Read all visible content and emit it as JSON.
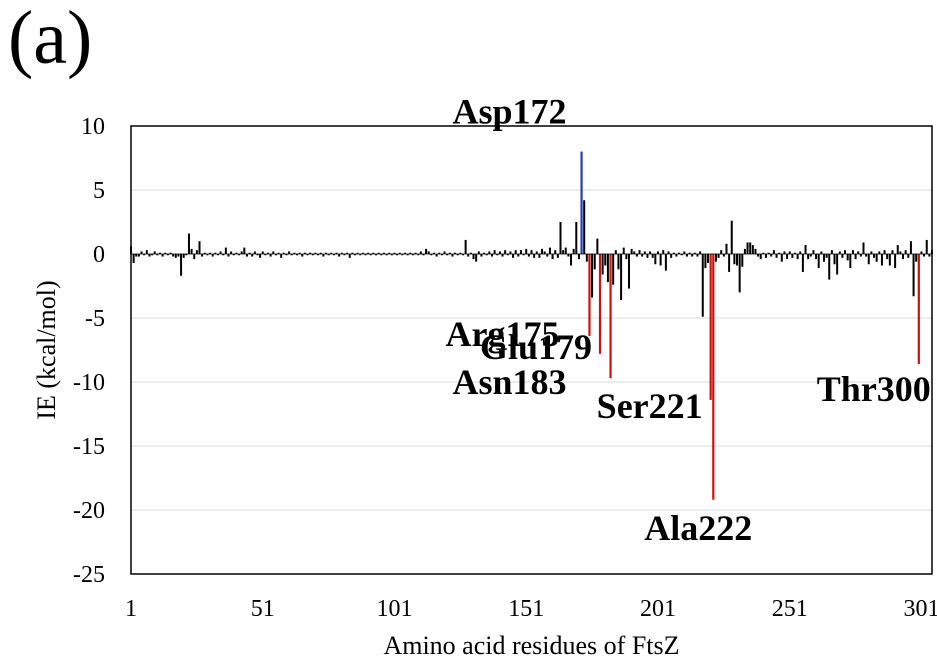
{
  "panel_label": "(a)",
  "chart_data": {
    "type": "bar",
    "xlabel": "Amino acid residues of FtsZ",
    "ylabel": "IE (kcal/mol)",
    "xlim": [
      1,
      305
    ],
    "ylim": [
      -25,
      10
    ],
    "x_ticks": [
      1,
      51,
      101,
      151,
      201,
      251,
      301
    ],
    "y_ticks": [
      10,
      5,
      0,
      -5,
      -10,
      -15,
      -20,
      -25
    ],
    "grid": "horizontal",
    "colors": {
      "default": "#000000",
      "highlight_positive": "#1f3fb5",
      "highlight_negative": "#d01010"
    },
    "highlighted": [
      {
        "label": "Asp172",
        "residue": 172,
        "value": 8.0,
        "color": "blue"
      },
      {
        "label": "Arg175",
        "residue": 175,
        "value": -6.4,
        "color": "red"
      },
      {
        "label": "Glu179",
        "residue": 179,
        "value": -7.8,
        "color": "red"
      },
      {
        "label": "Asn183",
        "residue": 183,
        "value": -9.7,
        "color": "red"
      },
      {
        "label": "Ser221",
        "residue": 221,
        "value": -11.4,
        "color": "red"
      },
      {
        "label": "Ala222",
        "residue": 222,
        "value": -19.2,
        "color": "red"
      },
      {
        "label": "Thr300",
        "residue": 300,
        "value": -8.6,
        "color": "red"
      }
    ],
    "residues": [
      {
        "x": 1,
        "y": 0.6
      },
      {
        "x": 2,
        "y": -0.7
      },
      {
        "x": 3,
        "y": -0.2
      },
      {
        "x": 4,
        "y": -0.2
      },
      {
        "x": 5,
        "y": 0.2
      },
      {
        "x": 6,
        "y": -0.1
      },
      {
        "x": 7,
        "y": 0.3
      },
      {
        "x": 8,
        "y": -0.2
      },
      {
        "x": 9,
        "y": -0.1
      },
      {
        "x": 10,
        "y": 0.2
      },
      {
        "x": 11,
        "y": -0.1
      },
      {
        "x": 12,
        "y": 0.1
      },
      {
        "x": 13,
        "y": -0.2
      },
      {
        "x": 14,
        "y": 0.1
      },
      {
        "x": 15,
        "y": -0.1
      },
      {
        "x": 16,
        "y": 0.1
      },
      {
        "x": 17,
        "y": -0.2
      },
      {
        "x": 18,
        "y": -0.3
      },
      {
        "x": 19,
        "y": -0.2
      },
      {
        "x": 20,
        "y": -1.7
      },
      {
        "x": 21,
        "y": -0.3
      },
      {
        "x": 22,
        "y": -0.1
      },
      {
        "x": 23,
        "y": 1.6
      },
      {
        "x": 24,
        "y": 0.4
      },
      {
        "x": 25,
        "y": -0.4
      },
      {
        "x": 26,
        "y": 0.3
      },
      {
        "x": 27,
        "y": 1.0
      },
      {
        "x": 28,
        "y": -0.2
      },
      {
        "x": 29,
        "y": 0.1
      },
      {
        "x": 30,
        "y": -0.1
      },
      {
        "x": 31,
        "y": 0.1
      },
      {
        "x": 32,
        "y": -0.2
      },
      {
        "x": 33,
        "y": 0.1
      },
      {
        "x": 34,
        "y": -0.1
      },
      {
        "x": 35,
        "y": 0.2
      },
      {
        "x": 36,
        "y": -0.1
      },
      {
        "x": 37,
        "y": 0.5
      },
      {
        "x": 38,
        "y": -0.2
      },
      {
        "x": 39,
        "y": 0.2
      },
      {
        "x": 40,
        "y": -0.1
      },
      {
        "x": 41,
        "y": 0.1
      },
      {
        "x": 42,
        "y": -0.1
      },
      {
        "x": 43,
        "y": 0.2
      },
      {
        "x": 44,
        "y": 0.5
      },
      {
        "x": 45,
        "y": -0.2
      },
      {
        "x": 46,
        "y": 0.1
      },
      {
        "x": 47,
        "y": -0.2
      },
      {
        "x": 48,
        "y": 0.2
      },
      {
        "x": 49,
        "y": -0.1
      },
      {
        "x": 50,
        "y": -0.3
      },
      {
        "x": 51,
        "y": 0.2
      },
      {
        "x": 52,
        "y": -0.1
      },
      {
        "x": 53,
        "y": 0.1
      },
      {
        "x": 54,
        "y": -0.2
      },
      {
        "x": 55,
        "y": 0.2
      },
      {
        "x": 56,
        "y": -0.1
      },
      {
        "x": 57,
        "y": 0.1
      },
      {
        "x": 58,
        "y": -0.3
      },
      {
        "x": 59,
        "y": 0.1
      },
      {
        "x": 60,
        "y": -0.1
      },
      {
        "x": 61,
        "y": 0.2
      },
      {
        "x": 62,
        "y": -0.1
      },
      {
        "x": 63,
        "y": 0.1
      },
      {
        "x": 64,
        "y": -0.1
      },
      {
        "x": 65,
        "y": 0.1
      },
      {
        "x": 66,
        "y": -0.2
      },
      {
        "x": 67,
        "y": 0.1
      },
      {
        "x": 68,
        "y": -0.1
      },
      {
        "x": 69,
        "y": 0.1
      },
      {
        "x": 70,
        "y": -0.1
      },
      {
        "x": 71,
        "y": 0.1
      },
      {
        "x": 72,
        "y": -0.1
      },
      {
        "x": 73,
        "y": 0.1
      },
      {
        "x": 74,
        "y": -0.2
      },
      {
        "x": 75,
        "y": 0.1
      },
      {
        "x": 76,
        "y": -0.1
      },
      {
        "x": 77,
        "y": 0.1
      },
      {
        "x": 78,
        "y": -0.1
      },
      {
        "x": 79,
        "y": 0.1
      },
      {
        "x": 80,
        "y": -0.2
      },
      {
        "x": 81,
        "y": 0.1
      },
      {
        "x": 82,
        "y": -0.1
      },
      {
        "x": 83,
        "y": 0.1
      },
      {
        "x": 84,
        "y": -0.3
      },
      {
        "x": 85,
        "y": 0.1
      },
      {
        "x": 86,
        "y": -0.1
      },
      {
        "x": 87,
        "y": 0.1
      },
      {
        "x": 88,
        "y": -0.1
      },
      {
        "x": 89,
        "y": 0.1
      },
      {
        "x": 90,
        "y": -0.1
      },
      {
        "x": 91,
        "y": 0.1
      },
      {
        "x": 92,
        "y": -0.1
      },
      {
        "x": 93,
        "y": 0.1
      },
      {
        "x": 94,
        "y": -0.1
      },
      {
        "x": 95,
        "y": 0.1
      },
      {
        "x": 96,
        "y": -0.1
      },
      {
        "x": 97,
        "y": 0.1
      },
      {
        "x": 98,
        "y": -0.1
      },
      {
        "x": 99,
        "y": 0.1
      },
      {
        "x": 100,
        "y": -0.1
      },
      {
        "x": 101,
        "y": 0.1
      },
      {
        "x": 102,
        "y": -0.1
      },
      {
        "x": 103,
        "y": 0.1
      },
      {
        "x": 104,
        "y": -0.1
      },
      {
        "x": 105,
        "y": 0.1
      },
      {
        "x": 106,
        "y": -0.1
      },
      {
        "x": 107,
        "y": 0.1
      },
      {
        "x": 108,
        "y": -0.1
      },
      {
        "x": 109,
        "y": 0.1
      },
      {
        "x": 110,
        "y": -0.1
      },
      {
        "x": 111,
        "y": 0.2
      },
      {
        "x": 112,
        "y": -0.1
      },
      {
        "x": 113,
        "y": 0.4
      },
      {
        "x": 114,
        "y": 0.2
      },
      {
        "x": 115,
        "y": -0.1
      },
      {
        "x": 116,
        "y": 0.1
      },
      {
        "x": 117,
        "y": -0.2
      },
      {
        "x": 118,
        "y": 0.1
      },
      {
        "x": 119,
        "y": -0.1
      },
      {
        "x": 120,
        "y": 0.2
      },
      {
        "x": 121,
        "y": -0.1
      },
      {
        "x": 122,
        "y": 0.1
      },
      {
        "x": 123,
        "y": -0.2
      },
      {
        "x": 124,
        "y": 0.1
      },
      {
        "x": 125,
        "y": -0.1
      },
      {
        "x": 126,
        "y": 0.1
      },
      {
        "x": 127,
        "y": -0.1
      },
      {
        "x": 128,
        "y": 1.1
      },
      {
        "x": 129,
        "y": -0.2
      },
      {
        "x": 130,
        "y": 0.1
      },
      {
        "x": 131,
        "y": -0.4
      },
      {
        "x": 132,
        "y": -0.6
      },
      {
        "x": 133,
        "y": 0.2
      },
      {
        "x": 134,
        "y": -0.2
      },
      {
        "x": 135,
        "y": 0.1
      },
      {
        "x": 136,
        "y": -0.1
      },
      {
        "x": 137,
        "y": 0.2
      },
      {
        "x": 138,
        "y": -0.2
      },
      {
        "x": 139,
        "y": 0.3
      },
      {
        "x": 140,
        "y": -0.1
      },
      {
        "x": 141,
        "y": 0.2
      },
      {
        "x": 142,
        "y": -0.2
      },
      {
        "x": 143,
        "y": 0.3
      },
      {
        "x": 144,
        "y": -0.1
      },
      {
        "x": 145,
        "y": 0.2
      },
      {
        "x": 146,
        "y": -0.3
      },
      {
        "x": 147,
        "y": 0.3
      },
      {
        "x": 148,
        "y": -0.2
      },
      {
        "x": 149,
        "y": 0.3
      },
      {
        "x": 150,
        "y": -0.1
      },
      {
        "x": 151,
        "y": 0.4
      },
      {
        "x": 152,
        "y": -0.2
      },
      {
        "x": 153,
        "y": 0.3
      },
      {
        "x": 154,
        "y": -0.3
      },
      {
        "x": 155,
        "y": 0.2
      },
      {
        "x": 156,
        "y": -0.3
      },
      {
        "x": 157,
        "y": 0.4
      },
      {
        "x": 158,
        "y": 0.2
      },
      {
        "x": 159,
        "y": -0.2
      },
      {
        "x": 160,
        "y": 0.5
      },
      {
        "x": 161,
        "y": -0.4
      },
      {
        "x": 162,
        "y": 0.3
      },
      {
        "x": 163,
        "y": -0.3
      },
      {
        "x": 164,
        "y": 2.5
      },
      {
        "x": 165,
        "y": 0.3
      },
      {
        "x": 166,
        "y": 0.5
      },
      {
        "x": 167,
        "y": -0.2
      },
      {
        "x": 168,
        "y": -0.9
      },
      {
        "x": 169,
        "y": 0.4
      },
      {
        "x": 170,
        "y": 2.5
      },
      {
        "x": 171,
        "y": -0.4
      },
      {
        "x": 172,
        "y": 8.0
      },
      {
        "x": 173,
        "y": 4.2
      },
      {
        "x": 174,
        "y": -0.6
      },
      {
        "x": 175,
        "y": -6.4
      },
      {
        "x": 176,
        "y": -3.4
      },
      {
        "x": 177,
        "y": -1.2
      },
      {
        "x": 178,
        "y": 1.2
      },
      {
        "x": 179,
        "y": -7.8
      },
      {
        "x": 180,
        "y": -1.6
      },
      {
        "x": 181,
        "y": -0.9
      },
      {
        "x": 182,
        "y": -2.2
      },
      {
        "x": 183,
        "y": -9.7
      },
      {
        "x": 184,
        "y": -2.4
      },
      {
        "x": 185,
        "y": 0.3
      },
      {
        "x": 186,
        "y": -1.2
      },
      {
        "x": 187,
        "y": -3.6
      },
      {
        "x": 188,
        "y": 0.5
      },
      {
        "x": 189,
        "y": -0.4
      },
      {
        "x": 190,
        "y": -2.7
      },
      {
        "x": 191,
        "y": 0.4
      },
      {
        "x": 192,
        "y": 0.2
      },
      {
        "x": 193,
        "y": -0.2
      },
      {
        "x": 194,
        "y": 0.3
      },
      {
        "x": 195,
        "y": -0.2
      },
      {
        "x": 196,
        "y": 0.2
      },
      {
        "x": 197,
        "y": -0.3
      },
      {
        "x": 198,
        "y": 0.2
      },
      {
        "x": 199,
        "y": -0.3
      },
      {
        "x": 200,
        "y": -0.8
      },
      {
        "x": 201,
        "y": 0.2
      },
      {
        "x": 202,
        "y": -0.9
      },
      {
        "x": 203,
        "y": 0.3
      },
      {
        "x": 204,
        "y": -1.3
      },
      {
        "x": 205,
        "y": 0.2
      },
      {
        "x": 206,
        "y": -0.3
      },
      {
        "x": 207,
        "y": 0.1
      },
      {
        "x": 208,
        "y": -0.2
      },
      {
        "x": 209,
        "y": 0.1
      },
      {
        "x": 210,
        "y": -0.1
      },
      {
        "x": 211,
        "y": 0.2
      },
      {
        "x": 212,
        "y": -0.2
      },
      {
        "x": 213,
        "y": 0.1
      },
      {
        "x": 214,
        "y": -0.2
      },
      {
        "x": 215,
        "y": 0.1
      },
      {
        "x": 216,
        "y": -0.2
      },
      {
        "x": 217,
        "y": 0.2
      },
      {
        "x": 218,
        "y": -4.9
      },
      {
        "x": 219,
        "y": -1.1
      },
      {
        "x": 220,
        "y": -0.7
      },
      {
        "x": 221,
        "y": -11.4
      },
      {
        "x": 222,
        "y": -19.2
      },
      {
        "x": 223,
        "y": -0.6
      },
      {
        "x": 224,
        "y": -0.3
      },
      {
        "x": 225,
        "y": 0.3
      },
      {
        "x": 226,
        "y": -0.2
      },
      {
        "x": 227,
        "y": 0.8
      },
      {
        "x": 228,
        "y": -1.4
      },
      {
        "x": 229,
        "y": 2.6
      },
      {
        "x": 230,
        "y": -0.8
      },
      {
        "x": 231,
        "y": -0.9
      },
      {
        "x": 232,
        "y": -3.0
      },
      {
        "x": 233,
        "y": -1.0
      },
      {
        "x": 234,
        "y": 0.4
      },
      {
        "x": 235,
        "y": 0.9
      },
      {
        "x": 236,
        "y": 0.9
      },
      {
        "x": 237,
        "y": 0.7
      },
      {
        "x": 238,
        "y": 0.4
      },
      {
        "x": 239,
        "y": -0.2
      },
      {
        "x": 240,
        "y": -0.4
      },
      {
        "x": 241,
        "y": 0.1
      },
      {
        "x": 242,
        "y": -0.3
      },
      {
        "x": 243,
        "y": 0.1
      },
      {
        "x": 244,
        "y": -0.2
      },
      {
        "x": 245,
        "y": 0.3
      },
      {
        "x": 246,
        "y": -0.3
      },
      {
        "x": 247,
        "y": 0.1
      },
      {
        "x": 248,
        "y": -0.6
      },
      {
        "x": 249,
        "y": 0.2
      },
      {
        "x": 250,
        "y": -0.4
      },
      {
        "x": 251,
        "y": 0.2
      },
      {
        "x": 252,
        "y": -0.3
      },
      {
        "x": 253,
        "y": 0.1
      },
      {
        "x": 254,
        "y": -0.4
      },
      {
        "x": 255,
        "y": 0.2
      },
      {
        "x": 256,
        "y": -1.4
      },
      {
        "x": 257,
        "y": 0.7
      },
      {
        "x": 258,
        "y": -0.4
      },
      {
        "x": 259,
        "y": -0.2
      },
      {
        "x": 260,
        "y": 0.3
      },
      {
        "x": 261,
        "y": -0.4
      },
      {
        "x": 262,
        "y": -1.1
      },
      {
        "x": 263,
        "y": 0.2
      },
      {
        "x": 264,
        "y": -0.6
      },
      {
        "x": 265,
        "y": -0.3
      },
      {
        "x": 266,
        "y": -2.0
      },
      {
        "x": 267,
        "y": 0.3
      },
      {
        "x": 268,
        "y": -0.8
      },
      {
        "x": 269,
        "y": -1.6
      },
      {
        "x": 270,
        "y": 0.2
      },
      {
        "x": 271,
        "y": -0.3
      },
      {
        "x": 272,
        "y": 0.3
      },
      {
        "x": 273,
        "y": -0.5
      },
      {
        "x": 274,
        "y": -1.1
      },
      {
        "x": 275,
        "y": 0.3
      },
      {
        "x": 276,
        "y": -0.4
      },
      {
        "x": 277,
        "y": 0.2
      },
      {
        "x": 278,
        "y": -0.2
      },
      {
        "x": 279,
        "y": 0.9
      },
      {
        "x": 280,
        "y": -0.2
      },
      {
        "x": 281,
        "y": -0.8
      },
      {
        "x": 282,
        "y": 0.2
      },
      {
        "x": 283,
        "y": -0.3
      },
      {
        "x": 284,
        "y": -0.6
      },
      {
        "x": 285,
        "y": 0.2
      },
      {
        "x": 286,
        "y": -0.9
      },
      {
        "x": 287,
        "y": 0.3
      },
      {
        "x": 288,
        "y": -0.4
      },
      {
        "x": 289,
        "y": -0.9
      },
      {
        "x": 290,
        "y": 0.3
      },
      {
        "x": 291,
        "y": -1.1
      },
      {
        "x": 292,
        "y": 0.7
      },
      {
        "x": 293,
        "y": 0.2
      },
      {
        "x": 294,
        "y": -0.4
      },
      {
        "x": 295,
        "y": 0.3
      },
      {
        "x": 296,
        "y": -0.3
      },
      {
        "x": 297,
        "y": 1.0
      },
      {
        "x": 298,
        "y": -3.3
      },
      {
        "x": 299,
        "y": -0.6
      },
      {
        "x": 300,
        "y": -8.6
      },
      {
        "x": 301,
        "y": 0.2
      },
      {
        "x": 302,
        "y": -0.2
      },
      {
        "x": 303,
        "y": 1.1
      },
      {
        "x": 304,
        "y": -0.2
      },
      {
        "x": 305,
        "y": 0.3
      }
    ]
  }
}
